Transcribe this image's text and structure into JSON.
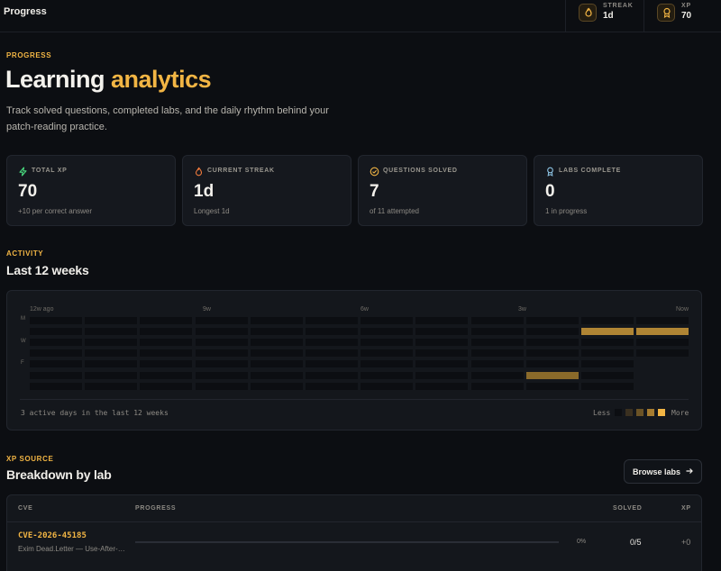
{
  "topbar": {
    "title": "Progress",
    "streak": {
      "label": "STREAK",
      "value": "1d",
      "icon": "flame-icon"
    },
    "xp": {
      "label": "XP",
      "value": "70",
      "icon": "badge-icon"
    }
  },
  "header": {
    "eyebrow": "PROGRESS",
    "title_main": "Learning",
    "title_accent": "analytics",
    "lede": "Track solved questions, completed labs, and the daily rhythm behind your patch-reading practice."
  },
  "stats": [
    {
      "label": "TOTAL XP",
      "value": "70",
      "sub": "+10 per correct answer",
      "icon": "bolt-icon",
      "color": "#4ade80"
    },
    {
      "label": "CURRENT STREAK",
      "value": "1d",
      "sub": "Longest 1d",
      "icon": "flame-icon",
      "color": "#f07a3c"
    },
    {
      "label": "QUESTIONS SOLVED",
      "value": "7",
      "sub": "of 11 attempted",
      "icon": "check-circle-icon",
      "color": "#f2b544"
    },
    {
      "label": "LABS COMPLETE",
      "value": "0",
      "sub": "1 in progress",
      "icon": "award-icon",
      "color": "#8fc7e8"
    }
  ],
  "activity": {
    "eyebrow": "ACTIVITY",
    "title": "Last 12 weeks",
    "week_labels": [
      "12w ago",
      "9w",
      "6w",
      "3w",
      "Now"
    ],
    "day_labels": [
      "M",
      "W",
      "F"
    ],
    "active_cells": [
      {
        "week": 10,
        "day": 1,
        "level": 3
      },
      {
        "week": 11,
        "day": 1,
        "level": 3
      },
      {
        "week": 9,
        "day": 5,
        "level": 2
      }
    ],
    "summary": "3 active days in the last 12 weeks",
    "legend_less": "Less",
    "legend_more": "More",
    "legend_colors": [
      "#0c0e12",
      "#3a3020",
      "#6b5326",
      "#a67c30",
      "#f2b544"
    ]
  },
  "xp_source": {
    "eyebrow": "XP SOURCE",
    "title": "Breakdown by lab",
    "browse_label": "Browse labs",
    "columns": [
      "CVE",
      "PROGRESS",
      "SOLVED",
      "XP"
    ],
    "rows": [
      {
        "cve": "CVE-2026-45185",
        "desc": "Exim Dead.Letter — Use-After-…",
        "progress": 0,
        "progress_label": "0%",
        "solved": "0/5",
        "xp": "+0"
      }
    ]
  },
  "accent_color": "#f2b544"
}
